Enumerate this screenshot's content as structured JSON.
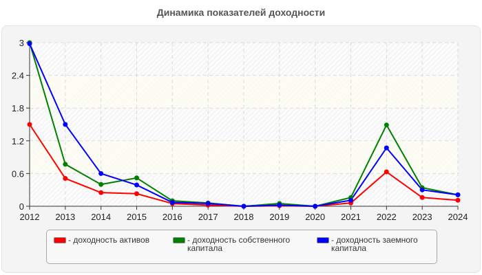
{
  "title": "Динамика показателей доходности",
  "chart_data": {
    "type": "line",
    "title": "Динамика показателей доходности",
    "xlabel": "",
    "ylabel": "",
    "x": [
      "2012",
      "2013",
      "2014",
      "2015",
      "2016",
      "2017",
      "2018",
      "2019",
      "2020",
      "2021",
      "2022",
      "2023",
      "2024"
    ],
    "ylim": [
      0,
      3
    ],
    "yticks": [
      "0",
      "0.6",
      "1.2",
      "1.8",
      "2.4",
      "3"
    ],
    "grid": true,
    "legend_position": "bottom",
    "series": [
      {
        "name": "- доходность активов",
        "color": "#ff0000",
        "values": [
          1.5,
          0.51,
          0.25,
          0.23,
          0.05,
          0.02,
          0.0,
          0.01,
          0.0,
          0.06,
          0.63,
          0.16,
          0.11
        ]
      },
      {
        "name": "- доходность собственного капитала",
        "color": "#008000",
        "values": [
          3.0,
          0.77,
          0.4,
          0.52,
          0.1,
          0.06,
          0.0,
          0.05,
          0.0,
          0.16,
          1.49,
          0.34,
          0.21
        ]
      },
      {
        "name": "- доходность заемного капитала",
        "color": "#0000ff",
        "values": [
          2.98,
          1.5,
          0.6,
          0.39,
          0.07,
          0.05,
          0.0,
          0.02,
          0.0,
          0.11,
          1.07,
          0.3,
          0.21
        ]
      }
    ]
  },
  "legend": {
    "items": [
      {
        "label": "- доходность активов",
        "color": "#ff0000"
      },
      {
        "label": "- доходность собственного капитала",
        "color": "#008000"
      },
      {
        "label": "- доходность заемного капитала",
        "color": "#0000ff"
      }
    ]
  }
}
